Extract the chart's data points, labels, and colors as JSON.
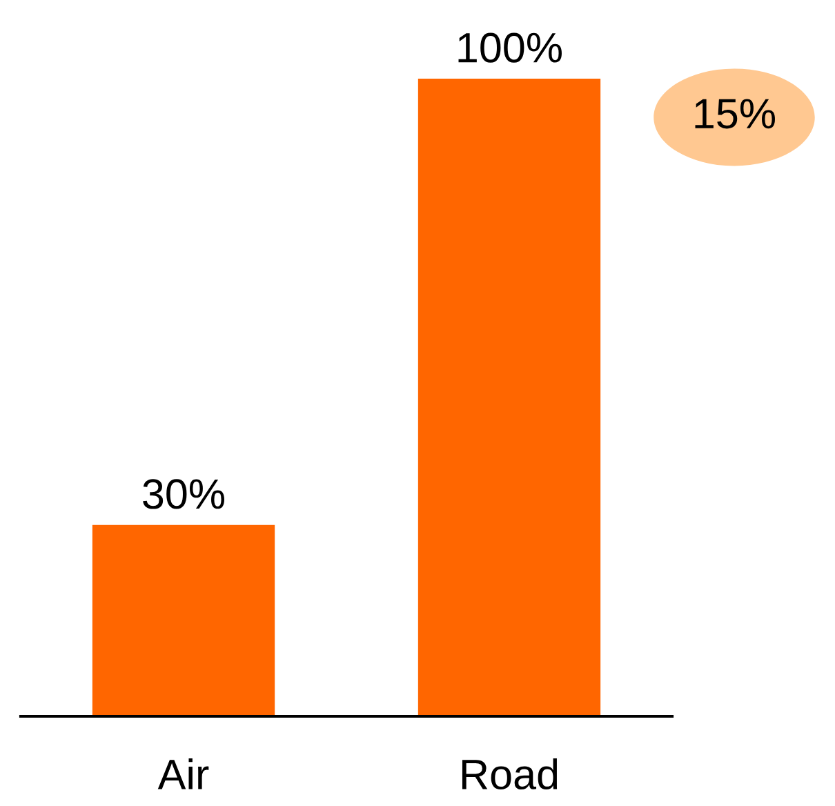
{
  "chart_data": {
    "type": "bar",
    "categories": [
      "Air",
      "Road"
    ],
    "values": [
      30,
      100
    ],
    "color": "#ff6600",
    "value_labels": [
      "30%",
      "100%"
    ],
    "annotations": [
      "15%"
    ]
  }
}
